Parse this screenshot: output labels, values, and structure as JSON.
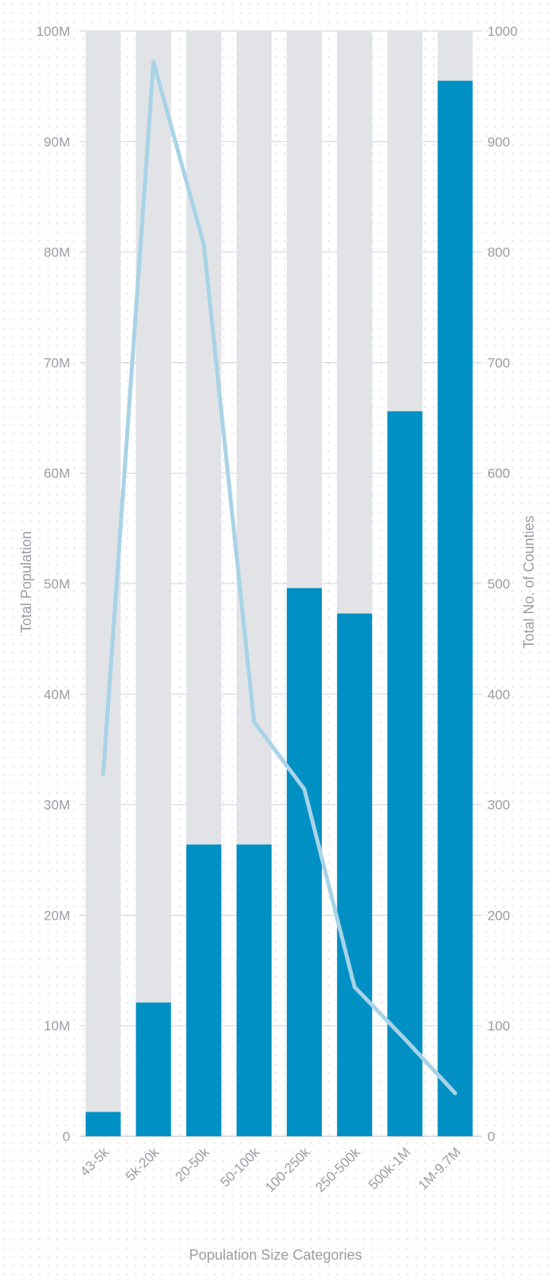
{
  "chart_data": {
    "type": "bar",
    "title": "",
    "xlabel": "Population Size Categories",
    "ylabel": "Total Population",
    "y2label": "Total No. of Counties",
    "categories": [
      "43-5k",
      "5k-20k",
      "20-50k",
      "50-100k",
      "100-250k",
      "250-500k",
      "500k-1M",
      "1M-9.7M"
    ],
    "ylim": [
      0,
      100000000
    ],
    "y2lim": [
      0,
      1000
    ],
    "yticks": [
      0,
      10000000,
      20000000,
      30000000,
      40000000,
      50000000,
      60000000,
      70000000,
      80000000,
      90000000,
      100000000
    ],
    "yticklabels": [
      "0",
      "10M",
      "20M",
      "30M",
      "40M",
      "50M",
      "60M",
      "70M",
      "80M",
      "90M",
      "100M"
    ],
    "y2ticks": [
      0,
      100,
      200,
      300,
      400,
      500,
      600,
      700,
      800,
      900,
      1000
    ],
    "y2ticklabels": [
      "0",
      "100",
      "200",
      "300",
      "400",
      "500",
      "600",
      "700",
      "800",
      "900",
      "1000"
    ],
    "grid": true,
    "series": [
      {
        "type": "bar",
        "axis": "left",
        "values": [
          2200000,
          12100000,
          26400000,
          26400000,
          49600000,
          47300000,
          65600000,
          95500000
        ],
        "background_max": 100000000,
        "color": "#0090c4",
        "background_color": "#e1e3e7"
      },
      {
        "type": "line",
        "axis": "right",
        "values": [
          328,
          972,
          807,
          375,
          314,
          135,
          88,
          39
        ],
        "color": "#a8d3e7"
      }
    ]
  }
}
